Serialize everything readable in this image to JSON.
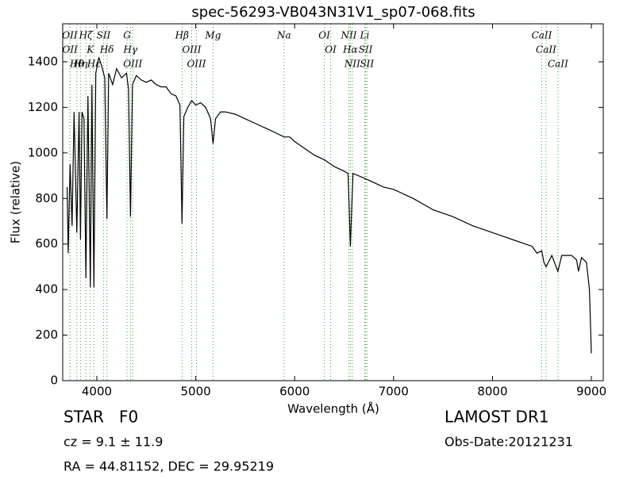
{
  "chart_data": {
    "type": "line",
    "title": "spec-56293-VB043N31V1_sp07-068.fits",
    "x_label": "Wavelength (Å)",
    "y_label": "Flux (relative)",
    "xlim": [
      3655,
      9120
    ],
    "ylim": [
      0,
      1567
    ],
    "xticks": [
      4000,
      5000,
      6000,
      7000,
      8000,
      9000
    ],
    "yticks": [
      0,
      200,
      400,
      600,
      800,
      1000,
      1200,
      1400
    ],
    "series": [
      {
        "color": "#000000",
        "x": [
          3700,
          3710,
          3730,
          3750,
          3770,
          3798,
          3820,
          3835,
          3850,
          3870,
          3889,
          3910,
          3934,
          3950,
          3970,
          3990,
          4020,
          4050,
          4080,
          4102,
          4120,
          4160,
          4200,
          4250,
          4300,
          4320,
          4340,
          4360,
          4400,
          4450,
          4500,
          4550,
          4600,
          4650,
          4700,
          4750,
          4800,
          4840,
          4861,
          4880,
          4920,
          4960,
          5000,
          5050,
          5100,
          5150,
          5175,
          5200,
          5250,
          5300,
          5400,
          5500,
          5600,
          5700,
          5800,
          5893,
          5950,
          6000,
          6100,
          6200,
          6300,
          6400,
          6500,
          6540,
          6563,
          6590,
          6700,
          6800,
          6900,
          7000,
          7200,
          7400,
          7600,
          7800,
          8000,
          8200,
          8400,
          8450,
          8498,
          8520,
          8542,
          8600,
          8662,
          8700,
          8800,
          8850,
          8870,
          8900,
          8950,
          8980,
          9000
        ],
        "values": [
          850,
          560,
          950,
          680,
          1180,
          650,
          1180,
          620,
          1180,
          1150,
          450,
          1250,
          410,
          1300,
          410,
          1350,
          1420,
          1380,
          1330,
          710,
          1350,
          1300,
          1370,
          1330,
          1350,
          1280,
          720,
          1300,
          1340,
          1320,
          1310,
          1320,
          1300,
          1290,
          1290,
          1260,
          1250,
          1210,
          690,
          1160,
          1200,
          1230,
          1210,
          1220,
          1200,
          1150,
          1040,
          1150,
          1180,
          1180,
          1170,
          1150,
          1130,
          1110,
          1090,
          1070,
          1070,
          1050,
          1020,
          990,
          970,
          940,
          920,
          910,
          590,
          910,
          890,
          870,
          850,
          840,
          800,
          750,
          720,
          680,
          650,
          620,
          590,
          560,
          570,
          520,
          500,
          550,
          480,
          550,
          550,
          530,
          480,
          540,
          520,
          400,
          120
        ]
      }
    ],
    "lines": [
      {
        "label": "OII",
        "x": 3727
      },
      {
        "label": "OII",
        "x": 3729
      },
      {
        "label": "Hθ",
        "x": 3798
      },
      {
        "label": "Hη",
        "x": 3835
      },
      {
        "label": "Hζ",
        "x": 3889
      },
      {
        "label": "K",
        "x": 3934
      },
      {
        "label": "Hε",
        "x": 3970
      },
      {
        "label": "SII",
        "x": 4068
      },
      {
        "label": "Hδ",
        "x": 4102
      },
      {
        "label": "G",
        "x": 4305
      },
      {
        "label": "Hγ",
        "x": 4340
      },
      {
        "label": "OIII",
        "x": 4363
      },
      {
        "label": "Hβ",
        "x": 4861
      },
      {
        "label": "OIII",
        "x": 4959
      },
      {
        "label": "OIII",
        "x": 5007
      },
      {
        "label": "Mg",
        "x": 5175
      },
      {
        "label": "Na",
        "x": 5893
      },
      {
        "label": "OI",
        "x": 6300
      },
      {
        "label": "OI",
        "x": 6364
      },
      {
        "label": "NII",
        "x": 6548
      },
      {
        "label": "Hα",
        "x": 6563
      },
      {
        "label": "NII",
        "x": 6583
      },
      {
        "label": "Li",
        "x": 6708
      },
      {
        "label": "SII",
        "x": 6717
      },
      {
        "label": "SII",
        "x": 6731
      },
      {
        "label": "CaII",
        "x": 8498
      },
      {
        "label": "CaII",
        "x": 8542
      },
      {
        "label": "CaII",
        "x": 8662
      }
    ],
    "object_class": "STAR   F0",
    "redshift": "cz = 9.1 ± 11.9",
    "coords": "RA = 44.81152, DEC = 29.95219",
    "survey": "LAMOST DR1",
    "obs_date": "Obs-Date:20121231"
  }
}
